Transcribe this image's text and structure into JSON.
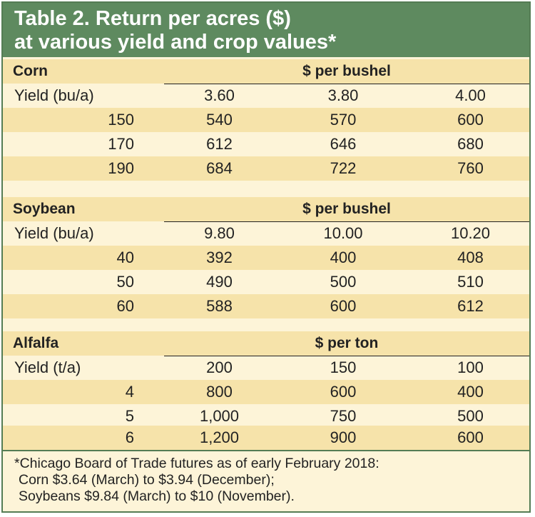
{
  "title": {
    "line1": "Table 2. Return per acres ($)",
    "line2": "at various yield and crop values*"
  },
  "sections": [
    {
      "crop": "Corn",
      "unit": "$ per bushel",
      "yield_label": "Yield (bu/a)",
      "prices": [
        "3.60",
        "3.80",
        "4.00"
      ],
      "rows": [
        {
          "yield": "150",
          "values": [
            "540",
            "570",
            "600"
          ]
        },
        {
          "yield": "170",
          "values": [
            "612",
            "646",
            "680"
          ]
        },
        {
          "yield": "190",
          "values": [
            "684",
            "722",
            "760"
          ]
        }
      ]
    },
    {
      "crop": "Soybean",
      "unit": "$ per bushel",
      "yield_label": "Yield (bu/a)",
      "prices": [
        "9.80",
        "10.00",
        "10.20"
      ],
      "rows": [
        {
          "yield": "40",
          "values": [
            "392",
            "400",
            "408"
          ]
        },
        {
          "yield": "50",
          "values": [
            "490",
            "500",
            "510"
          ]
        },
        {
          "yield": "60",
          "values": [
            "588",
            "600",
            "612"
          ]
        }
      ]
    },
    {
      "crop": "Alfalfa",
      "unit": "$ per ton",
      "yield_label": "Yield (t/a)",
      "prices": [
        "200",
        "150",
        "100"
      ],
      "rows": [
        {
          "yield": "4",
          "values": [
            "800",
            "600",
            "400"
          ]
        },
        {
          "yield": "5",
          "values": [
            "1,000",
            "750",
            "500"
          ]
        },
        {
          "yield": "6",
          "values": [
            "1,200",
            "900",
            "600"
          ]
        }
      ]
    }
  ],
  "footnote": {
    "line1": "*Chicago Board of Trade futures as of early February 2018:",
    "line2": "Corn $3.64 (March) to $3.94 (December);",
    "line3": "Soybeans $9.84 (March) to $10 (November)."
  },
  "colors": {
    "title_bg": "#5e8a5f",
    "body_bg": "#fdf4d8",
    "band_bg": "#f6e3aa"
  }
}
